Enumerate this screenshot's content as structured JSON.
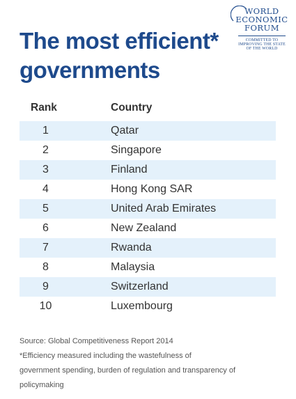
{
  "title": "The most efficient* governments",
  "logo": {
    "line1": "WORLD",
    "line2": "ECONOMIC",
    "line3": "FORUM",
    "tag1": "COMMITTED TO",
    "tag2": "IMPROVING THE STATE",
    "tag3": "OF THE WORLD"
  },
  "chart_data": {
    "type": "table",
    "columns": [
      "Rank",
      "Country"
    ],
    "rows": [
      [
        "1",
        "Qatar"
      ],
      [
        "2",
        "Singapore"
      ],
      [
        "3",
        "Finland"
      ],
      [
        "4",
        "Hong Kong SAR"
      ],
      [
        "5",
        "United Arab Emirates"
      ],
      [
        "6",
        "New Zealand"
      ],
      [
        "7",
        "Rwanda"
      ],
      [
        "8",
        "Malaysia"
      ],
      [
        "9",
        "Switzerland"
      ],
      [
        "10",
        "Luxembourg"
      ]
    ],
    "title": "The most efficient* governments"
  },
  "source": "Source: Global Competitiveness Report 2014",
  "footnote_line1": "*Efficiency measured including the wastefulness of",
  "footnote_line2": "government spending, burden of regulation and transparency of",
  "footnote_line3": "policymaking",
  "colors": {
    "title": "#1e4a8c",
    "stripe": "#e4f1fb",
    "text": "#333333"
  }
}
